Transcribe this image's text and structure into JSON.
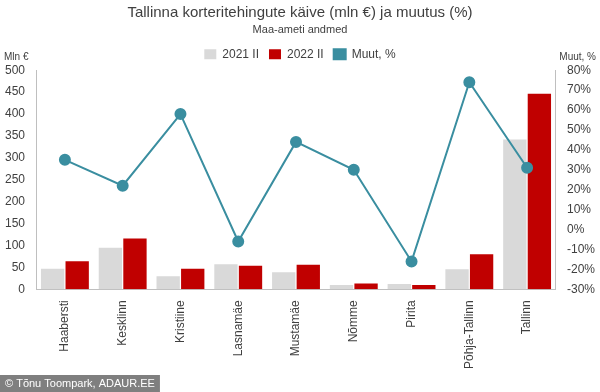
{
  "chart_data": {
    "type": "bar",
    "title": "Tallinna korteritehingute käive (mln €) ja muutus (%)",
    "subtitle": "Maa-ameti andmed",
    "y_label": "Mln €",
    "y2_label": "Muut, %",
    "source": "© Tõnu Toompark, ADAUR.EE",
    "categories": [
      "Haabersti",
      "Kesklinn",
      "Kristiine",
      "Lasnamäe",
      "Mustamäe",
      "Nõmme",
      "Pirita",
      "Põhja-Tallinn",
      "Tallinn"
    ],
    "series": [
      {
        "name": "2021 II",
        "type": "bar",
        "color": "#d9d9d9",
        "values": [
          47,
          95,
          30,
          57,
          39,
          10,
          12,
          46,
          342
        ]
      },
      {
        "name": "2022 II",
        "type": "bar",
        "color": "#c00000",
        "values": [
          64,
          116,
          47,
          54,
          56,
          13,
          10,
          80,
          446
        ]
      },
      {
        "name": "Muut, %",
        "type": "line",
        "color": "#3a8ea0",
        "marker": "circle",
        "axis": "y2",
        "values": [
          35,
          22,
          58,
          -6,
          44,
          30,
          -16,
          74,
          31
        ]
      }
    ],
    "ylim": [
      0,
      500
    ],
    "yticks": [
      0,
      50,
      100,
      150,
      200,
      250,
      300,
      350,
      400,
      450,
      500
    ],
    "y2lim": [
      -30,
      80
    ],
    "y2ticks": [
      {
        "value": -30,
        "label": "-30%"
      },
      {
        "value": -20,
        "label": "-20%"
      },
      {
        "value": -10,
        "label": "-10%"
      },
      {
        "value": 0,
        "label": "0%"
      },
      {
        "value": 10,
        "label": "10%"
      },
      {
        "value": 20,
        "label": "20%"
      },
      {
        "value": 30,
        "label": "30%"
      },
      {
        "value": 40,
        "label": "40%"
      },
      {
        "value": 50,
        "label": "50%"
      },
      {
        "value": 60,
        "label": "60%"
      },
      {
        "value": 70,
        "label": "70%"
      },
      {
        "value": 80,
        "label": "80%"
      }
    ],
    "grid": false,
    "legend": "top"
  }
}
